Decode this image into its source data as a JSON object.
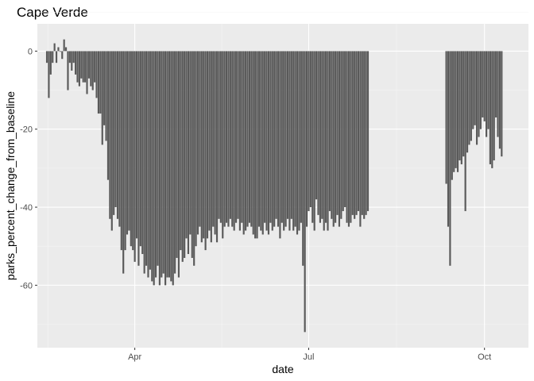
{
  "chart_data": {
    "type": "bar",
    "title": "Cape Verde",
    "xlabel": "date",
    "ylabel": "parks_percent_change_from_baseline",
    "x_start": "2020-02-15",
    "x_range": [
      "2020-02-10",
      "2020-10-24"
    ],
    "ylim": [
      -76,
      7
    ],
    "x_ticks": [
      {
        "date": "2020-04-01",
        "label": "Apr"
      },
      {
        "date": "2020-07-01",
        "label": "Jul"
      },
      {
        "date": "2020-10-01",
        "label": "Oct"
      }
    ],
    "y_ticks": [
      0,
      -20,
      -40,
      -60
    ],
    "grid": true,
    "legend": "none",
    "values": [
      -3,
      -12,
      -6,
      -3,
      2,
      -3,
      1,
      0,
      -2,
      3,
      1,
      -10,
      -3,
      -5,
      -3,
      -6,
      -8,
      -9,
      -7,
      -8,
      -8,
      -11,
      -7,
      -9,
      -10,
      -8,
      -12,
      -16,
      -16,
      -24,
      -19,
      -23,
      -33,
      -43,
      -46,
      -42,
      -40,
      -43,
      -45,
      -51,
      -57,
      -51,
      -47,
      -46,
      -50,
      -51,
      -54,
      -48,
      -55,
      -50,
      -52,
      -57,
      -55,
      -58,
      -56,
      -59,
      -60,
      -58,
      -55,
      -60,
      -58,
      -57,
      -60,
      -58,
      -58,
      -59,
      -60,
      -57,
      -53,
      -58,
      -51,
      -54,
      -53,
      -48,
      -52,
      -47,
      -53,
      -55,
      -50,
      -47,
      -45,
      -49,
      -48,
      -51,
      -48,
      -46,
      -49,
      -45,
      -47,
      -49,
      -43,
      -44,
      -48,
      -45,
      -44,
      -45,
      -43,
      -45,
      -46,
      -44,
      -43,
      -46,
      -44,
      -47,
      -46,
      -45,
      -44,
      -45,
      -47,
      -48,
      -48,
      -45,
      -46,
      -47,
      -44,
      -46,
      -47,
      -44,
      -46,
      -45,
      -43,
      -45,
      -48,
      -44,
      -46,
      -45,
      -43,
      -46,
      -43,
      -46,
      -45,
      -47,
      -46,
      -44,
      -55,
      -72,
      -45,
      -41,
      -40,
      -44,
      -46,
      -38,
      -42,
      -44,
      -43,
      -46,
      -44,
      -46,
      -41,
      -43,
      -45,
      -44,
      -42,
      -45,
      -43,
      -41,
      -40,
      -44,
      -45,
      -44,
      -42,
      -43,
      -42,
      -41,
      -45,
      -42,
      -43,
      -42,
      -41,
      null,
      null,
      null,
      null,
      null,
      null,
      null,
      null,
      null,
      null,
      null,
      null,
      null,
      null,
      null,
      null,
      null,
      null,
      null,
      null,
      null,
      null,
      null,
      null,
      null,
      null,
      null,
      null,
      null,
      null,
      null,
      null,
      null,
      null,
      null,
      null,
      null,
      null,
      null,
      null,
      -34,
      -45,
      -55,
      -33,
      -31,
      -30,
      -31,
      -28,
      -29,
      -27,
      -41,
      -26,
      -24,
      -23,
      -20,
      -19,
      -24,
      -22,
      -20,
      -17,
      -18,
      -22,
      -20,
      -29,
      -30,
      -28,
      -17,
      -22,
      -25,
      -27
    ]
  }
}
